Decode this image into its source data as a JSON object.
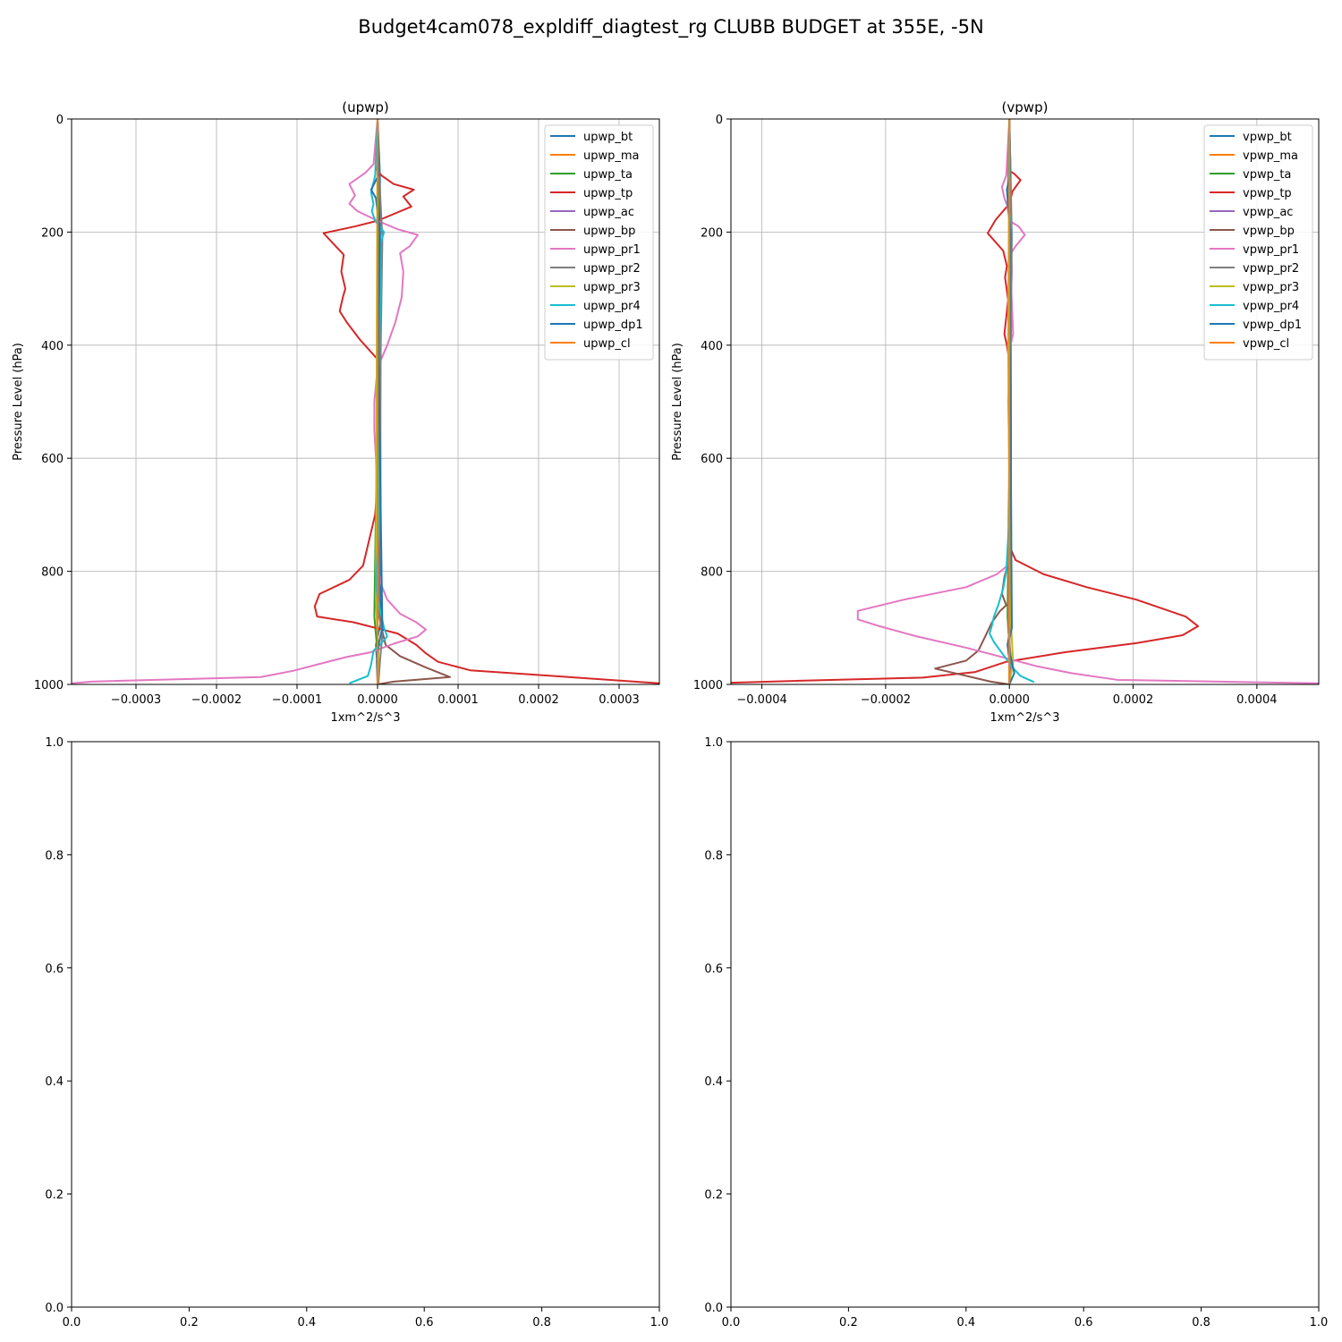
{
  "figure": {
    "suptitle": "Budget4cam078_expldiff_diagtest_rg CLUBB BUDGET at 355E, -5N"
  },
  "colors": {
    "bt": "#1f77b4",
    "ma": "#ff7f0e",
    "ta": "#2ca02c",
    "tp": "#d62728",
    "ac": "#9467bd",
    "bp": "#8c564b",
    "pr1": "#e377c2",
    "pr2": "#7f7f7f",
    "pr3": "#bcbd22",
    "pr4": "#17becf",
    "dp1": "#1f77b4",
    "cl": "#ff7f0e",
    "grid": "#b0b0b0"
  },
  "chart_data": [
    {
      "type": "line",
      "title": "(upwp)",
      "xlabel": "1xm^2/s^3",
      "ylabel": "Pressure Level (hPa)",
      "xlim": [
        -0.00038,
        0.00035
      ],
      "ylim": [
        1000,
        0
      ],
      "xticks": [
        -0.0003,
        -0.0002,
        -0.0001,
        0.0,
        0.0001,
        0.0002,
        0.0003
      ],
      "xtick_labels": [
        "−0.0003",
        "−0.0002",
        "−0.0001",
        "0.0000",
        "0.0001",
        "0.0002",
        "0.0003"
      ],
      "yticks": [
        0,
        200,
        400,
        600,
        800,
        1000
      ],
      "ytick_labels": [
        "0",
        "200",
        "400",
        "600",
        "800",
        "1000"
      ],
      "grid": true,
      "legend": "top-right",
      "series": [
        {
          "name": "upwp_bt",
          "key": "bt",
          "x": [
            0,
            3e-06,
            4e-06,
            -2e-06,
            0,
            1e-06,
            0
          ],
          "y": [
            0,
            100,
            890,
            930,
            975,
            998,
            1000
          ]
        },
        {
          "name": "upwp_ma",
          "key": "ma",
          "x": [
            0,
            0,
            0
          ],
          "y": [
            0,
            500,
            1000
          ]
        },
        {
          "name": "upwp_ta",
          "key": "ta",
          "x": [
            0,
            2e-06,
            -4e-06,
            1e-06,
            0
          ],
          "y": [
            0,
            300,
            880,
            960,
            1000
          ]
        },
        {
          "name": "upwp_tp",
          "key": "tp",
          "x": [
            0,
            0,
            -1e-06,
            5e-06,
            2e-05,
            4.5e-05,
            3.2e-05,
            4.2e-05,
            0,
            -2.8e-05,
            -6.7e-05,
            -5.2e-05,
            -4.2e-05,
            -4.5e-05,
            -4e-05,
            -4.3e-05,
            -4.7e-05,
            -3.8e-05,
            -2.2e-05,
            0,
            3e-06,
            2e-06,
            0,
            -1e-06,
            2e-06,
            0,
            -3e-06,
            -8e-06,
            -1.8e-05,
            -3.5e-05,
            -7.2e-05,
            -7.8e-05,
            -7.5e-05,
            -3e-05,
            2.5e-05,
            4.8e-05,
            6e-05,
            7.5e-05,
            0.000115,
            0.00035
          ],
          "y": [
            0,
            80,
            90,
            100,
            115,
            125,
            137,
            155,
            180,
            190,
            202,
            225,
            240,
            270,
            300,
            315,
            340,
            360,
            390,
            425,
            450,
            480,
            510,
            560,
            600,
            650,
            700,
            730,
            790,
            815,
            840,
            862,
            880,
            890,
            910,
            930,
            945,
            960,
            975,
            998
          ]
        },
        {
          "name": "upwp_ac",
          "key": "ac",
          "x": [
            0,
            0,
            0
          ],
          "y": [
            0,
            500,
            1000
          ]
        },
        {
          "name": "upwp_bp",
          "key": "bp",
          "x": [
            0,
            0,
            1e-06,
            1e-06,
            5e-06,
            1e-05,
            2.8e-05,
            6e-05,
            9e-05,
            2e-05,
            0
          ],
          "y": [
            0,
            600,
            700,
            850,
            900,
            930,
            950,
            970,
            987,
            995,
            1000
          ]
        },
        {
          "name": "upwp_pr1",
          "key": "pr1",
          "x": [
            0,
            -5e-06,
            -1.5e-05,
            -3.5e-05,
            -2.8e-05,
            -3.5e-05,
            -2.5e-05,
            0,
            2.5e-05,
            5e-05,
            4e-05,
            2.8e-05,
            3.2e-05,
            3e-05,
            2.2e-05,
            1.2e-05,
            0,
            -4e-06,
            -4e-06,
            -2e-06,
            0,
            0,
            3e-06,
            5e-06,
            1.2e-05,
            2.8e-05,
            4.8e-05,
            6e-05,
            5e-05,
            2e-05,
            -8e-06,
            -4e-05,
            -7e-05,
            -0.000105,
            -0.000145,
            -0.000355,
            -0.00038
          ],
          "y": [
            0,
            80,
            95,
            115,
            135,
            150,
            163,
            180,
            195,
            205,
            225,
            237,
            270,
            315,
            360,
            400,
            440,
            500,
            550,
            600,
            700,
            800,
            810,
            825,
            850,
            875,
            890,
            903,
            915,
            928,
            943,
            952,
            963,
            976,
            987,
            995,
            998
          ]
        },
        {
          "name": "upwp_pr2",
          "key": "pr2",
          "x": [
            0,
            2e-06,
            6e-06,
            4e-06,
            2e-06,
            6e-06,
            3e-06,
            1e-06
          ],
          "y": [
            0,
            100,
            210,
            400,
            880,
            910,
            960,
            1000
          ]
        },
        {
          "name": "upwp_pr3",
          "key": "pr3",
          "x": [
            0,
            -1e-06,
            -2e-06,
            1e-06,
            0
          ],
          "y": [
            0,
            400,
            850,
            950,
            1000
          ]
        },
        {
          "name": "upwp_pr4",
          "key": "pr4",
          "x": [
            0,
            -3e-06,
            -8e-06,
            -5e-06,
            -7e-06,
            -3e-06,
            8e-06,
            4e-06,
            4e-06,
            2e-06,
            1e-06,
            2e-06,
            -2e-06,
            0,
            5e-06,
            8e-06,
            1.2e-05,
            3e-06,
            -5e-06,
            -8e-06,
            -1.2e-05,
            -3.5e-05
          ],
          "y": [
            0,
            100,
            130,
            150,
            163,
            180,
            200,
            220,
            300,
            400,
            500,
            700,
            820,
            850,
            880,
            900,
            915,
            930,
            940,
            965,
            985,
            998
          ]
        },
        {
          "name": "upwp_dp1",
          "key": "dp1",
          "x": [
            0,
            1e-06,
            -8e-06,
            -2e-06,
            3e-06,
            1e-06,
            6e-06,
            2e-06,
            -1e-06,
            0
          ],
          "y": [
            0,
            100,
            125,
            140,
            200,
            400,
            900,
            925,
            960,
            1000
          ]
        },
        {
          "name": "upwp_cl",
          "key": "cl",
          "x": [
            0,
            0,
            0
          ],
          "y": [
            0,
            500,
            1000
          ]
        }
      ]
    },
    {
      "type": "line",
      "title": "(vpwp)",
      "xlabel": "1xm^2/s^3",
      "ylabel": "Pressure Level (hPa)",
      "xlim": [
        -0.00045,
        0.0005
      ],
      "ylim": [
        1000,
        0
      ],
      "xticks": [
        -0.0004,
        -0.0002,
        0.0,
        0.0002,
        0.0004
      ],
      "xtick_labels": [
        "−0.0004",
        "−0.0002",
        "0.0000",
        "0.0002",
        "0.0004"
      ],
      "yticks": [
        0,
        200,
        400,
        600,
        800,
        1000
      ],
      "ytick_labels": [
        "0",
        "200",
        "400",
        "600",
        "800",
        "1000"
      ],
      "grid": true,
      "legend": "top-right",
      "series": [
        {
          "name": "vpwp_bt",
          "key": "bt",
          "x": [
            0,
            2e-06,
            3e-06,
            -3e-06,
            2e-06,
            0
          ],
          "y": [
            0,
            100,
            890,
            930,
            975,
            1000
          ]
        },
        {
          "name": "vpwp_ma",
          "key": "ma",
          "x": [
            0,
            0,
            0
          ],
          "y": [
            0,
            500,
            1000
          ]
        },
        {
          "name": "vpwp_ta",
          "key": "ta",
          "x": [
            0,
            3e-06,
            -3e-06,
            2e-06,
            0
          ],
          "y": [
            0,
            300,
            880,
            960,
            1000
          ]
        },
        {
          "name": "vpwp_tp",
          "key": "tp",
          "x": [
            0,
            -2e-06,
            8e-06,
            1.8e-05,
            5e-06,
            0,
            -2.2e-05,
            -3.5e-05,
            -1e-05,
            -4e-06,
            -7e-06,
            -2e-06,
            -5e-06,
            -8e-06,
            -4e-06,
            0,
            1e-06,
            1e-06,
            0,
            0,
            0,
            2e-06,
            1e-05,
            5.5e-05,
            0.000125,
            0.000205,
            0.000285,
            0.000305,
            0.00028,
            0.000205,
            9e-05,
            -5e-06,
            -5.5e-05,
            -0.00014,
            -0.000355,
            -0.00045
          ],
          "y": [
            0,
            90,
            97,
            108,
            128,
            150,
            178,
            202,
            233,
            260,
            280,
            320,
            350,
            380,
            400,
            430,
            470,
            560,
            600,
            700,
            750,
            760,
            780,
            805,
            828,
            850,
            880,
            897,
            913,
            927,
            943,
            960,
            978,
            988,
            994,
            997
          ]
        },
        {
          "name": "vpwp_ac",
          "key": "ac",
          "x": [
            0,
            0,
            0
          ],
          "y": [
            0,
            500,
            1000
          ]
        },
        {
          "name": "vpwp_bp",
          "key": "bp",
          "x": [
            0,
            0,
            -3e-06,
            -8e-06,
            -1.2e-05,
            -5e-06,
            -1.5e-05,
            -2.8e-05,
            -5e-05,
            -7e-05,
            -0.00012,
            -3e-05,
            0
          ],
          "y": [
            0,
            700,
            790,
            810,
            840,
            860,
            870,
            890,
            940,
            958,
            972,
            995,
            1000
          ]
        },
        {
          "name": "vpwp_pr1",
          "key": "pr1",
          "x": [
            0,
            -5e-06,
            -1.2e-05,
            -8e-06,
            -3e-06,
            0,
            1.5e-05,
            2.5e-05,
            1e-05,
            3e-06,
            4e-06,
            3e-06,
            6e-06,
            2e-06,
            0,
            -2e-06,
            0,
            0,
            -3e-06,
            -2e-05,
            -7e-05,
            -0.00017,
            -0.000245,
            -0.000245,
            -0.00021,
            -0.00015,
            -7e-05,
            0,
            4.5e-05,
            0.0001,
            0.000175,
            0.0005
          ],
          "y": [
            0,
            100,
            120,
            140,
            155,
            180,
            190,
            205,
            225,
            237,
            270,
            300,
            380,
            400,
            440,
            500,
            600,
            750,
            790,
            805,
            828,
            850,
            870,
            885,
            897,
            915,
            935,
            955,
            968,
            980,
            992,
            998
          ]
        },
        {
          "name": "vpwp_pr2",
          "key": "pr2",
          "x": [
            0,
            2e-06,
            4e-06,
            2e-06,
            -2e-06,
            3e-06,
            0
          ],
          "y": [
            0,
            100,
            210,
            400,
            900,
            960,
            1000
          ]
        },
        {
          "name": "vpwp_pr3",
          "key": "pr3",
          "x": [
            0,
            -2e-06,
            1e-06,
            3e-06,
            6e-06,
            0
          ],
          "y": [
            0,
            400,
            850,
            900,
            960,
            1000
          ]
        },
        {
          "name": "vpwp_pr4",
          "key": "pr4",
          "x": [
            0,
            -2e-06,
            -3e-06,
            2e-06,
            3e-06,
            1e-06,
            0,
            -5e-06,
            -1e-05,
            -1.8e-05,
            -2.5e-05,
            -2.8e-05,
            -3.2e-05,
            -2.5e-05,
            -1.5e-05,
            -5e-06,
            5e-06,
            1.8e-05,
            4e-05
          ],
          "y": [
            0,
            100,
            150,
            180,
            200,
            400,
            700,
            800,
            830,
            860,
            880,
            895,
            910,
            925,
            940,
            955,
            970,
            985,
            996
          ]
        },
        {
          "name": "vpwp_dp1",
          "key": "dp1",
          "x": [
            0,
            1e-06,
            -4e-06,
            2e-06,
            1e-06,
            4e-06,
            -2e-06,
            8e-06,
            0
          ],
          "y": [
            0,
            100,
            125,
            200,
            400,
            900,
            930,
            980,
            1000
          ]
        },
        {
          "name": "vpwp_cl",
          "key": "cl",
          "x": [
            0,
            0,
            0
          ],
          "y": [
            0,
            500,
            1000
          ]
        }
      ]
    },
    {
      "type": "line",
      "title": "",
      "xlabel": "",
      "ylabel": "",
      "xlim": [
        0,
        1
      ],
      "ylim": [
        0,
        1
      ],
      "xticks": [
        0,
        0.2,
        0.4,
        0.6,
        0.8,
        1.0
      ],
      "xtick_labels": [
        "0.0",
        "0.2",
        "0.4",
        "0.6",
        "0.8",
        "1.0"
      ],
      "yticks": [
        0,
        0.2,
        0.4,
        0.6,
        0.8,
        1.0
      ],
      "ytick_labels": [
        "0.0",
        "0.2",
        "0.4",
        "0.6",
        "0.8",
        "1.0"
      ],
      "grid": false,
      "series": []
    },
    {
      "type": "line",
      "title": "",
      "xlabel": "",
      "ylabel": "",
      "xlim": [
        0,
        1
      ],
      "ylim": [
        0,
        1
      ],
      "xticks": [
        0,
        0.2,
        0.4,
        0.6,
        0.8,
        1.0
      ],
      "xtick_labels": [
        "0.0",
        "0.2",
        "0.4",
        "0.6",
        "0.8",
        "1.0"
      ],
      "yticks": [
        0,
        0.2,
        0.4,
        0.6,
        0.8,
        1.0
      ],
      "ytick_labels": [
        "0.0",
        "0.2",
        "0.4",
        "0.6",
        "0.8",
        "1.0"
      ],
      "grid": false,
      "series": []
    }
  ]
}
